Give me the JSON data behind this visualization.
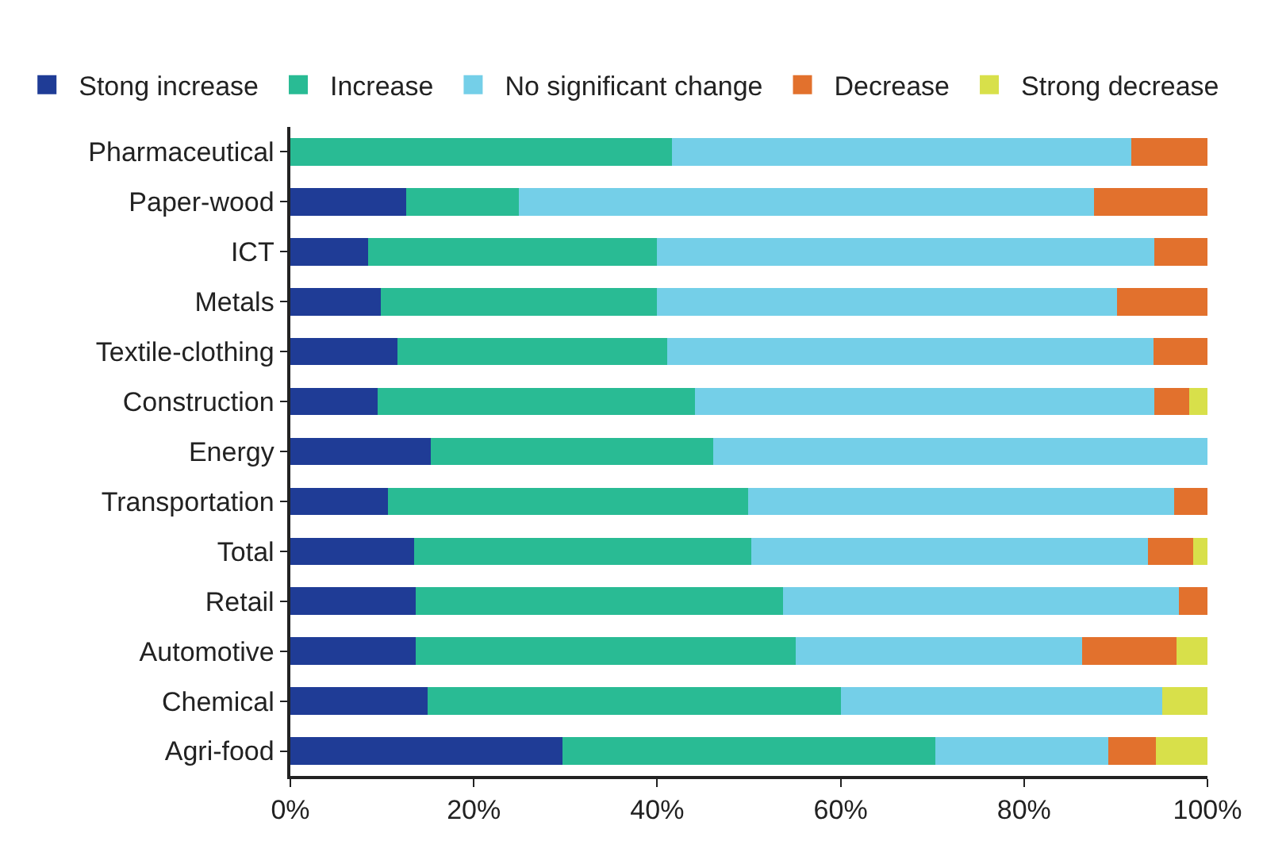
{
  "chart_data": {
    "type": "bar",
    "orientation": "horizontal",
    "stacked": true,
    "categories": [
      "Pharmaceutical",
      "Paper-wood",
      "ICT",
      "Metals",
      "Textile-clothing",
      "Construction",
      "Energy",
      "Transportation",
      "Total",
      "Retail",
      "Automotive",
      "Chemical",
      "Agri-food"
    ],
    "series": [
      {
        "name": "Stong increase",
        "color": "#1f3c96",
        "values": [
          0,
          12.6,
          8.5,
          9.9,
          11.7,
          9.5,
          15.3,
          10.6,
          13.5,
          13.7,
          13.7,
          15.0,
          29.7
        ]
      },
      {
        "name": "Increase",
        "color": "#29bb94",
        "values": [
          41.6,
          12.3,
          31.5,
          30.1,
          29.4,
          34.6,
          30.8,
          39.3,
          36.8,
          40.0,
          41.4,
          45.0,
          40.6
        ]
      },
      {
        "name": "No significant change",
        "color": "#74cfe8",
        "values": [
          50.1,
          62.7,
          54.2,
          50.1,
          53.0,
          50.1,
          53.9,
          46.5,
          43.2,
          43.2,
          31.2,
          35.1,
          18.9
        ]
      },
      {
        "name": "Decrease",
        "color": "#e2712d",
        "values": [
          8.3,
          12.4,
          5.8,
          9.9,
          5.9,
          3.8,
          0,
          3.6,
          4.9,
          3.1,
          10.3,
          0,
          5.2
        ]
      },
      {
        "name": "Strong decrease",
        "color": "#d8e04a",
        "values": [
          0,
          0,
          0,
          0,
          0,
          2.0,
          0,
          0,
          1.6,
          0,
          3.4,
          4.9,
          5.6
        ]
      }
    ],
    "xlim": [
      0,
      100
    ],
    "xticks": [
      {
        "value": 0,
        "label": "0%"
      },
      {
        "value": 20,
        "label": "20%"
      },
      {
        "value": 40,
        "label": "40%"
      },
      {
        "value": 60,
        "label": "60%"
      },
      {
        "value": 80,
        "label": "80%"
      },
      {
        "value": 100,
        "label": "100%"
      }
    ],
    "legend": "top"
  }
}
